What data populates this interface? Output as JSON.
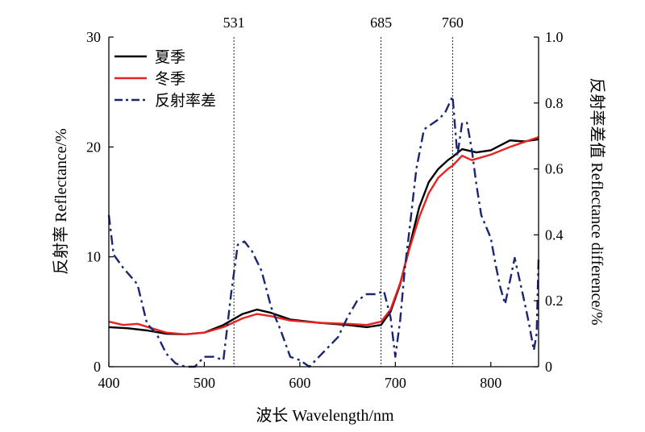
{
  "chart_data": {
    "type": "line",
    "xlabel": "波长 Wavelength/nm",
    "ylabel_left": "反射率 Reflectance/%",
    "ylabel_right": "反射率差值 Reflectance difference/%",
    "xlim": [
      400,
      850
    ],
    "ylim_left": [
      0,
      30
    ],
    "ylim_right": [
      0,
      1.0
    ],
    "x_ticks": [
      400,
      500,
      600,
      700,
      800
    ],
    "y_ticks_left": [
      0,
      10,
      20,
      30
    ],
    "y_ticks_right": [
      "0",
      "0.2",
      "0.4",
      "0.6",
      "0.8",
      "1.0"
    ],
    "y_ticks_right_values": [
      0,
      0.2,
      0.4,
      0.6,
      0.8,
      1.0
    ],
    "vlines": [
      531,
      685,
      760
    ],
    "vline_labels": [
      "531",
      "685",
      "760"
    ],
    "legend_position": "top-left",
    "series": [
      {
        "name": "夏季",
        "axis": "left",
        "color": "#000000",
        "style": "solid",
        "points": [
          [
            400,
            3.6
          ],
          [
            420,
            3.5
          ],
          [
            440,
            3.3
          ],
          [
            460,
            3.0
          ],
          [
            480,
            2.95
          ],
          [
            500,
            3.1
          ],
          [
            520,
            3.8
          ],
          [
            540,
            4.8
          ],
          [
            555,
            5.2
          ],
          [
            570,
            4.9
          ],
          [
            590,
            4.3
          ],
          [
            620,
            4.0
          ],
          [
            650,
            3.8
          ],
          [
            670,
            3.6
          ],
          [
            685,
            3.8
          ],
          [
            695,
            5.0
          ],
          [
            705,
            7.5
          ],
          [
            715,
            11
          ],
          [
            725,
            14.5
          ],
          [
            735,
            16.8
          ],
          [
            745,
            18.0
          ],
          [
            755,
            18.8
          ],
          [
            760,
            19.1
          ],
          [
            770,
            19.8
          ],
          [
            785,
            19.5
          ],
          [
            800,
            19.7
          ],
          [
            820,
            20.6
          ],
          [
            835,
            20.5
          ],
          [
            850,
            20.7
          ]
        ]
      },
      {
        "name": "冬季",
        "axis": "left",
        "color": "#e8231f",
        "style": "solid",
        "points": [
          [
            400,
            4.1
          ],
          [
            415,
            3.8
          ],
          [
            430,
            3.9
          ],
          [
            445,
            3.5
          ],
          [
            460,
            3.1
          ],
          [
            480,
            2.95
          ],
          [
            500,
            3.1
          ],
          [
            520,
            3.6
          ],
          [
            540,
            4.4
          ],
          [
            555,
            4.8
          ],
          [
            570,
            4.6
          ],
          [
            590,
            4.2
          ],
          [
            620,
            4.0
          ],
          [
            650,
            3.9
          ],
          [
            670,
            3.8
          ],
          [
            685,
            4.1
          ],
          [
            695,
            5.2
          ],
          [
            705,
            7.6
          ],
          [
            715,
            10.8
          ],
          [
            725,
            13.6
          ],
          [
            735,
            15.8
          ],
          [
            745,
            17.2
          ],
          [
            755,
            18.0
          ],
          [
            760,
            18.3
          ],
          [
            770,
            19.2
          ],
          [
            780,
            18.8
          ],
          [
            800,
            19.3
          ],
          [
            820,
            20.0
          ],
          [
            850,
            20.9
          ]
        ]
      },
      {
        "name": "反射率差",
        "axis": "right",
        "color": "#1c2570",
        "style": "dashdot",
        "points": [
          [
            400,
            0.46
          ],
          [
            405,
            0.34
          ],
          [
            415,
            0.3
          ],
          [
            430,
            0.25
          ],
          [
            440,
            0.13
          ],
          [
            450,
            0.1
          ],
          [
            460,
            0.04
          ],
          [
            470,
            0.01
          ],
          [
            480,
            0.0
          ],
          [
            490,
            0.0
          ],
          [
            500,
            0.03
          ],
          [
            510,
            0.03
          ],
          [
            520,
            0.02
          ],
          [
            528,
            0.22
          ],
          [
            535,
            0.37
          ],
          [
            542,
            0.38
          ],
          [
            550,
            0.35
          ],
          [
            560,
            0.29
          ],
          [
            570,
            0.18
          ],
          [
            580,
            0.11
          ],
          [
            590,
            0.03
          ],
          [
            600,
            0.02
          ],
          [
            610,
            0.0
          ],
          [
            620,
            0.03
          ],
          [
            640,
            0.09
          ],
          [
            650,
            0.15
          ],
          [
            660,
            0.2
          ],
          [
            670,
            0.22
          ],
          [
            680,
            0.22
          ],
          [
            688,
            0.23
          ],
          [
            695,
            0.15
          ],
          [
            700,
            0.03
          ],
          [
            705,
            0.14
          ],
          [
            710,
            0.3
          ],
          [
            715,
            0.42
          ],
          [
            722,
            0.6
          ],
          [
            730,
            0.72
          ],
          [
            745,
            0.75
          ],
          [
            752,
            0.77
          ],
          [
            760,
            0.82
          ],
          [
            765,
            0.64
          ],
          [
            770,
            0.74
          ],
          [
            775,
            0.74
          ],
          [
            780,
            0.66
          ],
          [
            785,
            0.55
          ],
          [
            790,
            0.46
          ],
          [
            800,
            0.39
          ],
          [
            805,
            0.31
          ],
          [
            810,
            0.24
          ],
          [
            815,
            0.19
          ],
          [
            825,
            0.33
          ],
          [
            835,
            0.2
          ],
          [
            840,
            0.13
          ],
          [
            845,
            0.05
          ],
          [
            848,
            0.1
          ],
          [
            850,
            0.33
          ]
        ]
      }
    ]
  }
}
